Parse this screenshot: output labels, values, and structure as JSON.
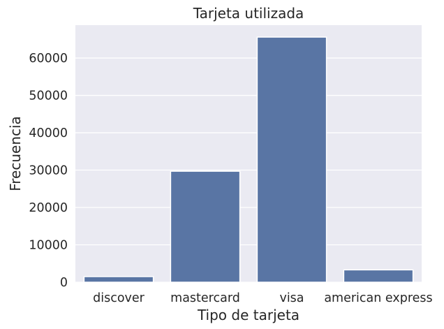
{
  "chart_data": {
    "type": "bar",
    "title": "Tarjeta utilizada",
    "xlabel": "Tipo de tarjeta",
    "ylabel": "Frecuencia",
    "categories": [
      "discover",
      "mastercard",
      "visa",
      "american express"
    ],
    "values": [
      1500,
      29700,
      65600,
      3300
    ],
    "ylim": [
      0,
      68800
    ],
    "yticks": [
      0,
      10000,
      20000,
      30000,
      40000,
      50000,
      60000
    ],
    "grid": true,
    "colors": {
      "bar": "#5975a4",
      "plot_background": "#eaeaf2",
      "grid": "#ffffff",
      "text": "#262626"
    }
  }
}
